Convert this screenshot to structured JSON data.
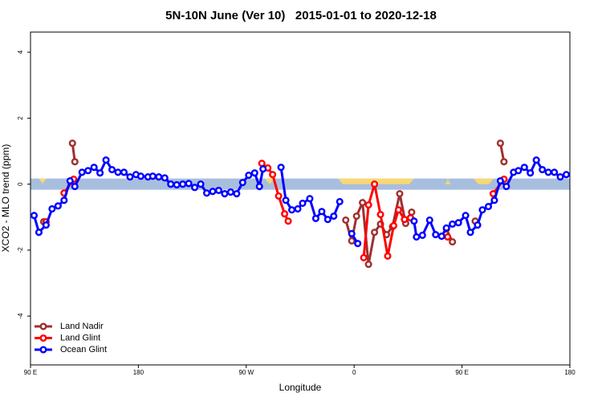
{
  "chart_data": {
    "type": "line",
    "title": "5N-10N June (Ver 10)   2015-01-01 to 2020-12-18",
    "x_label": "Longitude",
    "y_label": "XCO2 - MLO trend (ppm)",
    "xlim": [
      90,
      540
    ],
    "ylim": [
      -5.48,
      4.61
    ],
    "xticks": [
      {
        "value": 90,
        "label": "90 E"
      },
      180,
      {
        "value": 270,
        "label": "90 W"
      },
      {
        "value": 360,
        "label": "0"
      },
      {
        "value": 450,
        "label": "90 E"
      },
      {
        "value": 540,
        "label": "180"
      }
    ],
    "yticks": [
      -4,
      -2,
      0,
      2,
      4
    ],
    "legend": "bottom-left",
    "series": [
      {
        "name": "Land Nadir",
        "color": "#a03030",
        "x": [
          101,
          null,
          125,
          127,
          null,
          353,
          358,
          362,
          367,
          372,
          377,
          382,
          387,
          392,
          398,
          403,
          408,
          null,
          437,
          442,
          null,
          461,
          null,
          482,
          485
        ],
        "values": [
          -1.14,
          null,
          1.24,
          0.68,
          null,
          -1.09,
          -1.72,
          -0.97,
          -0.56,
          -2.43,
          -1.46,
          -1.21,
          -1.53,
          -1.29,
          -0.29,
          -1.19,
          -0.85,
          null,
          -1.36,
          -1.75,
          null,
          -1.12,
          null,
          1.24,
          0.68
        ]
      },
      {
        "name": "Land Glint",
        "color": "#ff0000",
        "x": [
          103,
          null,
          118,
          126,
          null,
          283,
          288,
          292,
          297,
          302,
          305,
          null,
          368,
          372,
          377,
          382,
          388,
          393,
          397,
          402,
          407,
          null,
          438,
          null,
          476,
          485
        ],
        "values": [
          -1.14,
          null,
          -0.27,
          0.15,
          null,
          0.63,
          0.49,
          0.29,
          -0.36,
          -0.9,
          -1.12,
          null,
          -2.23,
          -0.63,
          0.0,
          -0.92,
          -2.18,
          -1.26,
          -0.78,
          -1.07,
          -1.02,
          null,
          -1.6,
          null,
          -0.29,
          0.15
        ]
      },
      {
        "name": "Ocean Glint",
        "color": "#0000ff",
        "x": [
          93,
          97,
          103,
          108,
          113,
          118,
          123,
          127,
          133,
          138,
          143,
          148,
          153,
          158,
          163,
          168,
          173,
          178,
          182,
          188,
          192,
          197,
          202,
          207,
          212,
          217,
          222,
          227,
          232,
          237,
          242,
          247,
          252,
          257,
          262,
          267,
          272,
          277,
          281,
          284,
          null,
          299,
          303,
          308,
          313,
          317,
          323,
          328,
          333,
          338,
          343,
          348,
          null,
          358,
          363,
          null,
          410,
          412,
          417,
          423,
          428,
          433,
          437,
          442,
          447,
          453,
          457,
          463,
          467,
          472,
          477,
          482,
          487,
          493,
          497,
          502,
          507,
          512,
          517,
          522,
          527,
          532,
          537
        ],
        "values": [
          -0.95,
          -1.46,
          -1.24,
          -0.75,
          -0.66,
          -0.49,
          0.1,
          -0.07,
          0.36,
          0.41,
          0.51,
          0.34,
          0.73,
          0.44,
          0.36,
          0.36,
          0.22,
          0.29,
          0.24,
          0.22,
          0.24,
          0.22,
          0.19,
          0,
          -0.02,
          0,
          0.02,
          -0.1,
          0,
          -0.27,
          -0.22,
          -0.19,
          -0.29,
          -0.24,
          -0.29,
          0.05,
          0.27,
          0.34,
          -0.07,
          0.46,
          null,
          0.51,
          -0.49,
          -0.78,
          -0.75,
          -0.58,
          -0.44,
          -1.04,
          -0.83,
          -1.07,
          -0.97,
          -0.53,
          null,
          -1.5,
          -1.8,
          null,
          -1.12,
          -1.6,
          -1.55,
          -1.09,
          -1.53,
          -1.58,
          -1.33,
          -1.21,
          -1.17,
          -0.95,
          -1.46,
          -1.24,
          -0.78,
          -0.68,
          -0.49,
          0.1,
          -0.07,
          0.36,
          0.41,
          0.51,
          0.34,
          0.73,
          0.44,
          0.36,
          0.36,
          0.22,
          0.29
        ]
      }
    ]
  }
}
